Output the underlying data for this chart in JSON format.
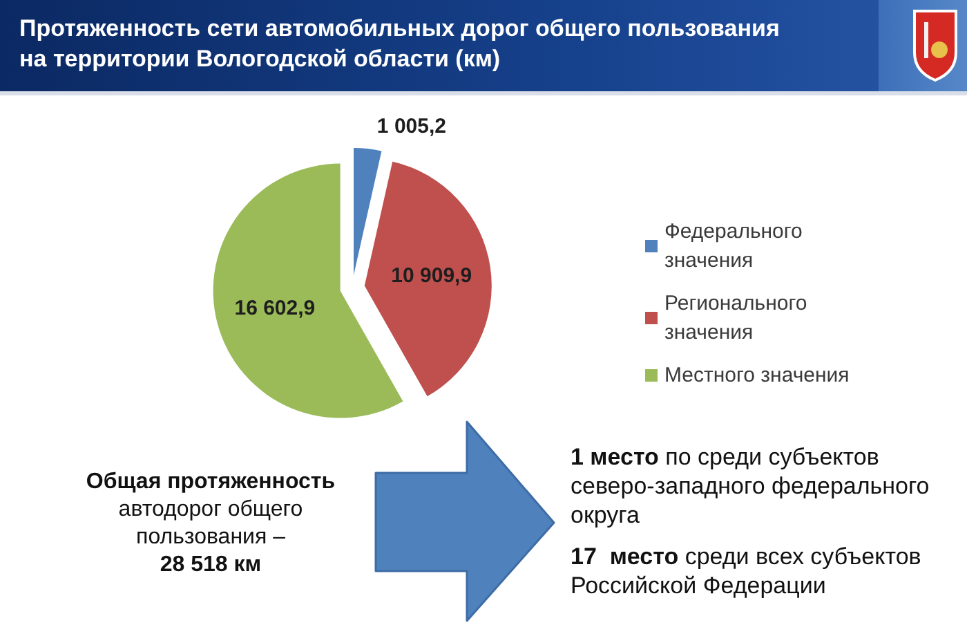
{
  "chart_data": {
    "type": "pie",
    "title": "Протяженность сети автомобильных дорог общего пользования на территории Вологодской области (км)",
    "categories": [
      "Федерального значения",
      "Регионального значения",
      "Местного значения"
    ],
    "values": [
      1005.2,
      10909.9,
      16602.9
    ],
    "colors": [
      "#4f81bd",
      "#c0504d",
      "#9bbb59"
    ],
    "value_labels": [
      "1 005,2",
      "10 909,9",
      "16 602,9"
    ],
    "legend": "right",
    "annotations": [
      "Общая протяженность",
      "автодорог общего пользования –",
      "28 518 км",
      "1 место",
      "по среди субъектов северо-западного федерального округа",
      "17  место",
      "среди всех субъектов Российской Федерации"
    ]
  }
}
